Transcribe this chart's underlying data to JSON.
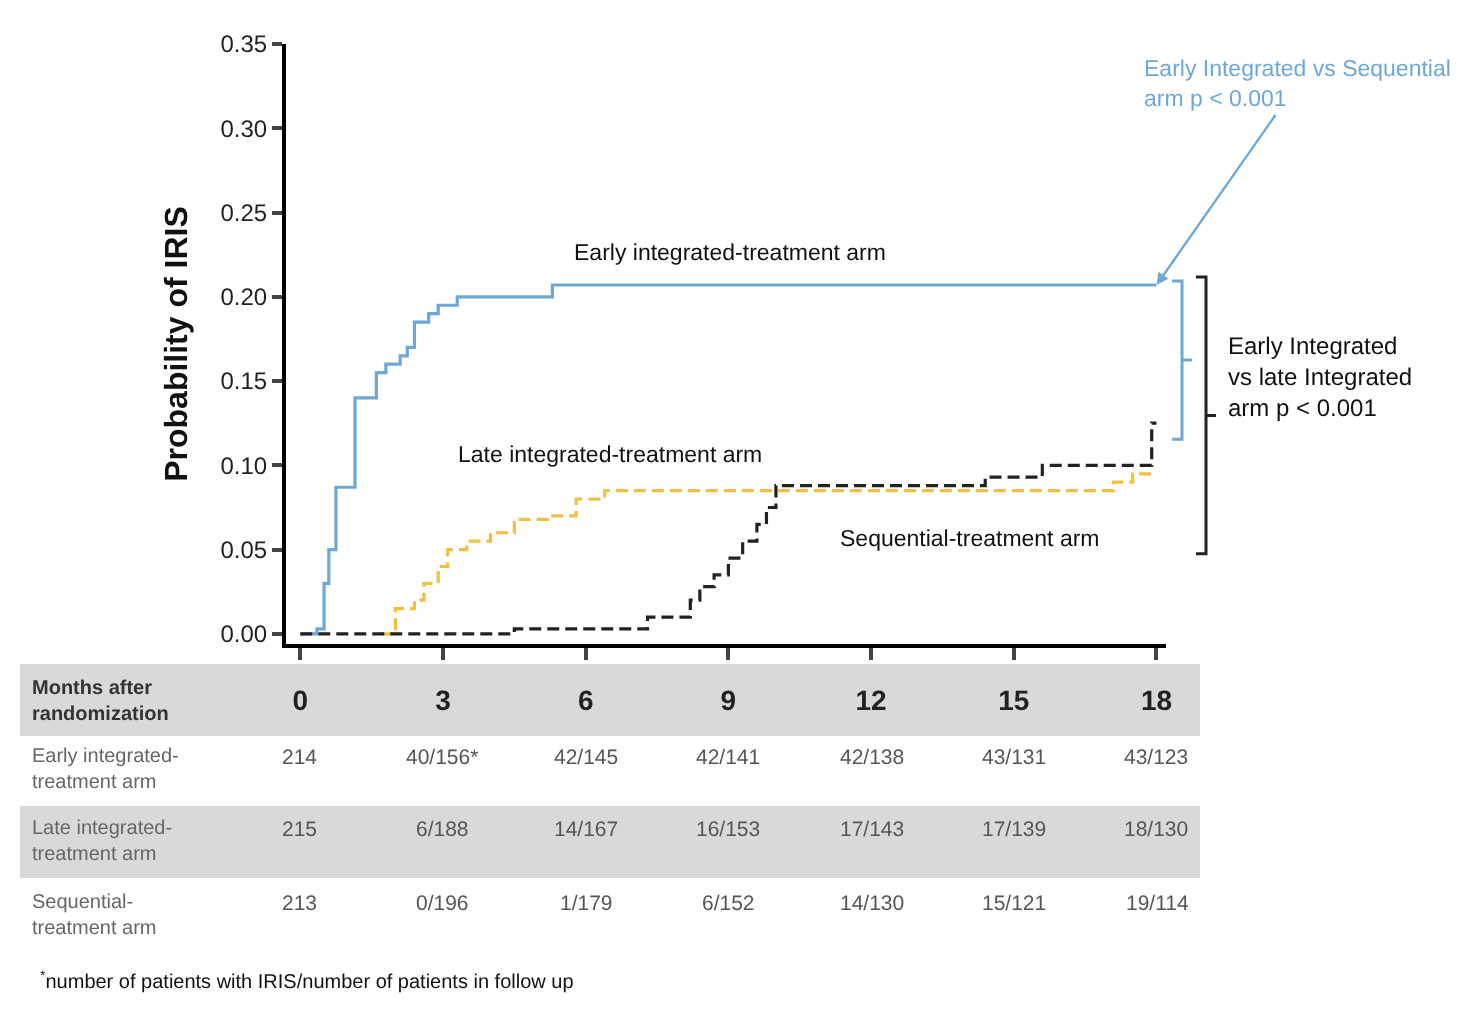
{
  "chart_data": {
    "type": "step",
    "ylabel": "Probability of IRIS",
    "xlim": [
      -0.3,
      18.2
    ],
    "xticks": [
      0,
      3,
      6,
      9,
      12,
      15,
      18
    ],
    "ylim": [
      -0.006,
      0.35
    ],
    "yticks": [
      {
        "value": 0,
        "label": "0.00"
      },
      {
        "value": 0.05,
        "label": "0.05"
      },
      {
        "value": 0.1,
        "label": "0.10"
      },
      {
        "value": 0.15,
        "label": "0.15"
      },
      {
        "value": 0.2,
        "label": "0.20"
      },
      {
        "value": 0.25,
        "label": "0.25"
      },
      {
        "value": 0.3,
        "label": "0.30"
      },
      {
        "value": 0.35,
        "label": "0.35"
      }
    ],
    "grid": false,
    "series": [
      {
        "color": "#6fa8d6",
        "line_style": "solid",
        "x": [
          0,
          0.35,
          0.5,
          0.6,
          0.75,
          1.15,
          1.6,
          1.8,
          2.1,
          2.25,
          2.4,
          2.7,
          2.9,
          3.3,
          5.3,
          18
        ],
        "values": [
          0,
          0.003,
          0.03,
          0.05,
          0.087,
          0.14,
          0.155,
          0.16,
          0.165,
          0.17,
          0.185,
          0.19,
          0.195,
          0.2,
          0.207,
          0.207
        ]
      },
      {
        "color": "#f0c040",
        "line_style": "dashed",
        "x": [
          1.7,
          2.0,
          2.4,
          2.6,
          2.9,
          3.1,
          3.5,
          4.0,
          4.5,
          5.2,
          5.8,
          6.4,
          17.1,
          17.5,
          18
        ],
        "values": [
          0,
          0.015,
          0.02,
          0.03,
          0.04,
          0.05,
          0.055,
          0.06,
          0.068,
          0.07,
          0.08,
          0.085,
          0.09,
          0.095,
          0.095
        ]
      },
      {
        "color": "#222222",
        "line_style": "dashed",
        "x": [
          0,
          4.5,
          7.3,
          8.2,
          8.4,
          8.7,
          9.0,
          9.3,
          9.6,
          9.8,
          10.0,
          14.4,
          15.6,
          17.9,
          18
        ],
        "values": [
          0,
          0.003,
          0.01,
          0.02,
          0.028,
          0.035,
          0.045,
          0.055,
          0.065,
          0.075,
          0.088,
          0.093,
          0.1,
          0.125,
          0.125
        ]
      }
    ],
    "annotations": [
      "Early integrated-treatment arm",
      "Late integrated-treatment arm",
      "Sequential-treatment arm",
      {
        "text": "Early Integrated vs Sequential arm p < 0.001",
        "x": 18,
        "y": 0.207
      },
      "Early Integrated vs late Integrated arm p < 0.001",
      "Months after randomization",
      "Early integrated-treatment arm",
      "214",
      "40/156*",
      "42/145",
      "42/141",
      "42/138",
      "43/131",
      "43/123",
      "Late integrated-treatment arm",
      "215",
      "6/188",
      "14/167",
      "16/153",
      "17/143",
      "17/139",
      "18/130",
      "Sequential-treatment arm",
      "213",
      "0/196",
      "1/179",
      "6/152",
      "14/130",
      "15/121",
      "19/114",
      "$^{*}$number of patients with IRIS/number of patients in follow up"
    ]
  }
}
